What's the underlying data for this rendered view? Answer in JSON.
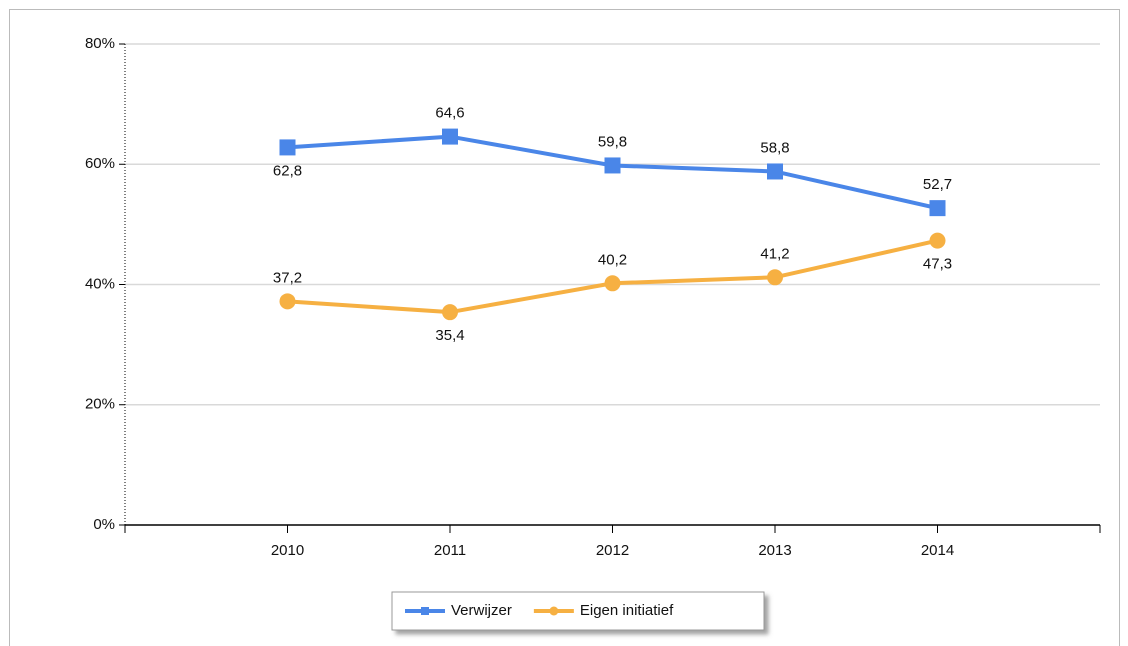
{
  "chart_data": {
    "type": "line",
    "categories": [
      "2010",
      "2011",
      "2012",
      "2013",
      "2014"
    ],
    "series": [
      {
        "name": "Verwijzer",
        "color": "#4a86e8",
        "marker": "square",
        "values": [
          62.8,
          64.6,
          59.8,
          58.8,
          52.7
        ],
        "value_labels": [
          "62,8",
          "64,6",
          "59,8",
          "58,8",
          "52,7"
        ]
      },
      {
        "name": "Eigen initiatief",
        "color": "#f6b042",
        "marker": "circle",
        "values": [
          37.2,
          35.4,
          40.2,
          41.2,
          47.3
        ],
        "value_labels": [
          "37,2",
          "35,4",
          "40,2",
          "41,2",
          "47,3"
        ]
      }
    ],
    "ylim": [
      0,
      80
    ],
    "yticks": [
      {
        "value": 0,
        "label": "0%"
      },
      {
        "value": 20,
        "label": "20%"
      },
      {
        "value": 40,
        "label": "40%"
      },
      {
        "value": 60,
        "label": "60%"
      },
      {
        "value": 80,
        "label": "80%"
      }
    ],
    "grid": true,
    "legend": "bottom"
  }
}
